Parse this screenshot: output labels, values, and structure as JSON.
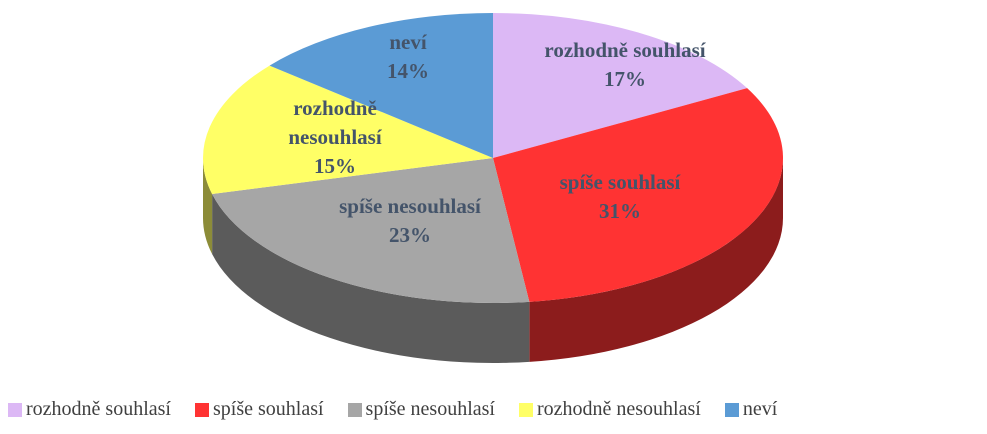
{
  "chart_data": {
    "type": "pie",
    "categories": [
      "rozhodně souhlasí",
      "spíše souhlasí",
      "spíše nesouhlasí",
      "rozhodně nesouhlasí",
      "neví"
    ],
    "values": [
      17,
      31,
      23,
      15,
      14
    ],
    "value_labels": [
      "17%",
      "31%",
      "23%",
      "15%",
      "14%"
    ],
    "colors": [
      "#dcb8f5",
      "#ff3333",
      "#a6a6a6",
      "#ffff66",
      "#5b9bd5"
    ],
    "legend": "bottom"
  }
}
